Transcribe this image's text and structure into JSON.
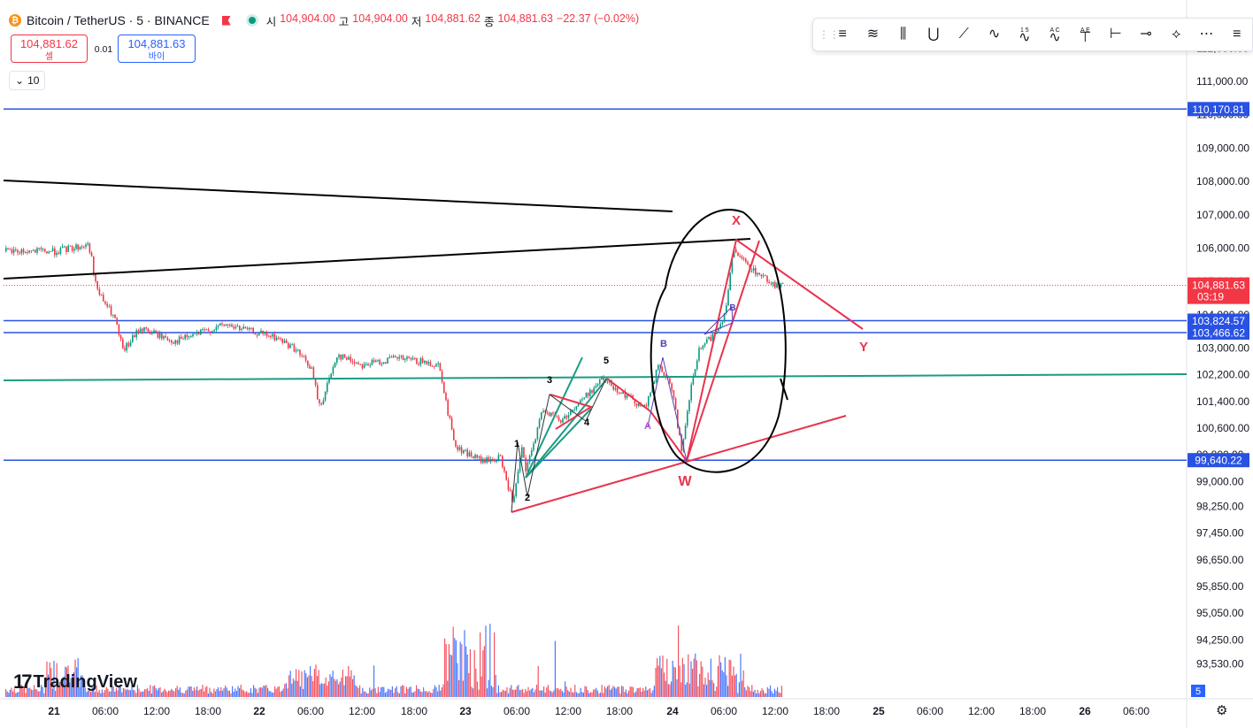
{
  "header": {
    "symbol": "Bitcoin / TetherUS · 5 · BINANCE",
    "coin_glyph": "₿",
    "open_label": "시",
    "open": "104,904.00",
    "high_label": "고",
    "high": "104,904.00",
    "low_label": "저",
    "low": "104,881.62",
    "close_label": "종",
    "close": "104,881.63",
    "change": "−22.37 (−0.02%)"
  },
  "trade": {
    "sell_price": "104,881.62",
    "sell_label": "셀",
    "spread": "0.01",
    "buy_price": "104,881.63",
    "buy_label": "바이"
  },
  "interval": {
    "label": "10",
    "chevron": "chevron-down-icon"
  },
  "watermark": {
    "text": "TradingView",
    "logo": "17"
  },
  "toolbar": {
    "grip_icon": "drag-handle-icon",
    "tools": [
      "pitchfork-icon",
      "fib-retracement-icon",
      "gann-box-icon",
      "vertical-lines-icon",
      "pattern-icon",
      "fan-icon",
      "elliott-impulse-icon",
      "abcd-icon",
      "elliott-correction-icon",
      "long-position-icon",
      "date-range-icon",
      "horizontal-ray-icon",
      "fib-fan-icon",
      "more-icon"
    ],
    "tool_labels": {
      "elliott-impulse-icon": "1 5",
      "abcd-icon": "A C",
      "elliott-correction-icon": "A E"
    }
  },
  "colors": {
    "up": "#089981",
    "down": "#f23645",
    "blue_line": "#2952e3",
    "accent": "#2962ff",
    "annot_red": "#e8344f",
    "annot_green": "#1a9c84"
  },
  "chart_data": {
    "type": "candlestick",
    "title": "Bitcoin / TetherUS · 5 · BINANCE",
    "y_axis_ticks": [
      "112,000.00",
      "111,000.00",
      "110,000.00",
      "109,000.00",
      "108,000.00",
      "107,000.00",
      "106,000.00",
      "105,000.00",
      "104,000.00",
      "103,000.00",
      "102,200.00",
      "101,400.00",
      "100,600.00",
      "99,800.00",
      "99,000.00",
      "98,250.00",
      "97,450.00",
      "96,650.00",
      "95,850.00",
      "95,050.00",
      "94,250.00",
      "93,530.00"
    ],
    "x_axis_ticks": [
      {
        "label": "21",
        "bold": true
      },
      {
        "label": "06:00"
      },
      {
        "label": "12:00"
      },
      {
        "label": "18:00"
      },
      {
        "label": "22",
        "bold": true
      },
      {
        "label": "06:00"
      },
      {
        "label": "12:00"
      },
      {
        "label": "18:00"
      },
      {
        "label": "23",
        "bold": true
      },
      {
        "label": "06:00"
      },
      {
        "label": "12:00"
      },
      {
        "label": "18:00"
      },
      {
        "label": "24",
        "bold": true
      },
      {
        "label": "06:00"
      },
      {
        "label": "12:00"
      },
      {
        "label": "18:00"
      },
      {
        "label": "25",
        "bold": true
      },
      {
        "label": "06:00"
      },
      {
        "label": "12:00"
      },
      {
        "label": "18:00"
      },
      {
        "label": "26",
        "bold": true
      },
      {
        "label": "06:00"
      }
    ],
    "last_price": {
      "value": "104,881.63",
      "countdown": "03:19"
    },
    "price_lines": [
      {
        "value": "110,170.81",
        "color": "#2952e3"
      },
      {
        "value": "103,824.57",
        "color": "#2952e3"
      },
      {
        "value": "103,466.62",
        "color": "#2952e3"
      },
      {
        "value": "99,640.22",
        "color": "#2952e3"
      }
    ],
    "volume_badge": "5",
    "price_path": [
      {
        "t": "21 00:00",
        "p": 105900
      },
      {
        "t": "21 04:00",
        "p": 106100
      },
      {
        "t": "21 05:00",
        "p": 104700
      },
      {
        "t": "21 07:00",
        "p": 103900
      },
      {
        "t": "21 08:00",
        "p": 102900
      },
      {
        "t": "21 10:00",
        "p": 103600
      },
      {
        "t": "21 14:00",
        "p": 103200
      },
      {
        "t": "21 20:00",
        "p": 103700
      },
      {
        "t": "22 02:00",
        "p": 103300
      },
      {
        "t": "22 04:00",
        "p": 103000
      },
      {
        "t": "22 06:00",
        "p": 102400
      },
      {
        "t": "22 07:00",
        "p": 101200
      },
      {
        "t": "22 09:00",
        "p": 102800
      },
      {
        "t": "22 12:00",
        "p": 102500
      },
      {
        "t": "22 16:00",
        "p": 102700
      },
      {
        "t": "22 21:00",
        "p": 102500
      },
      {
        "t": "22 22:00",
        "p": 101000
      },
      {
        "t": "22 23:00",
        "p": 100000
      },
      {
        "t": "23 02:00",
        "p": 99600
      },
      {
        "t": "23 04:00",
        "p": 99700
      },
      {
        "t": "23 05:30",
        "p": 98300
      },
      {
        "t": "23 06:30",
        "p": 100000
      },
      {
        "t": "23 07:00",
        "p": 99300
      },
      {
        "t": "23 09:00",
        "p": 101200
      },
      {
        "t": "23 11:00",
        "p": 100800
      },
      {
        "t": "23 13:00",
        "p": 101300
      },
      {
        "t": "23 16:00",
        "p": 102100
      },
      {
        "t": "23 18:00",
        "p": 101700
      },
      {
        "t": "23 21:00",
        "p": 101200
      },
      {
        "t": "23 22:30",
        "p": 102500
      },
      {
        "t": "24 00:00",
        "p": 101700
      },
      {
        "t": "24 01:00",
        "p": 99800
      },
      {
        "t": "24 02:00",
        "p": 101700
      },
      {
        "t": "24 03:00",
        "p": 102900
      },
      {
        "t": "24 05:00",
        "p": 103500
      },
      {
        "t": "24 06:00",
        "p": 104000
      },
      {
        "t": "24 07:00",
        "p": 105900
      },
      {
        "t": "24 09:00",
        "p": 105400
      },
      {
        "t": "24 12:00",
        "p": 104880
      }
    ],
    "annotations": {
      "wave_labels": [
        "1",
        "2",
        "3",
        "4",
        "5",
        "A",
        "B",
        "B",
        "X",
        "W",
        "Y"
      ]
    }
  }
}
